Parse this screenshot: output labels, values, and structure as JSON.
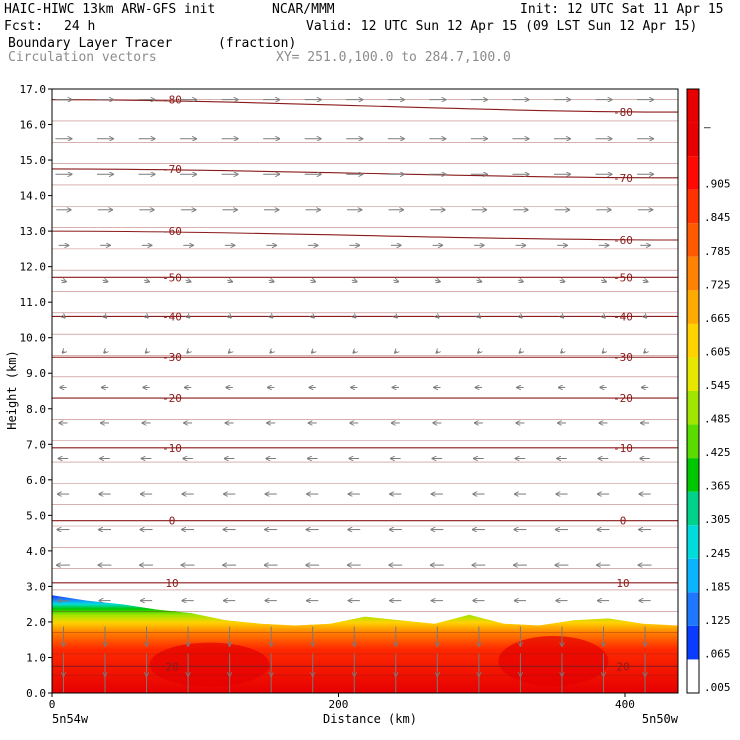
{
  "header": {
    "model": "HAIC-HIWC 13km ARW-GFS init",
    "center": "NCAR/MMM",
    "init": "Init: 12 UTC Sat 11 Apr 15",
    "fcst_label": "Fcst:",
    "fcst_value": "24 h",
    "valid": "Valid: 12 UTC Sun 12 Apr 15 (09 LST Sun 12 Apr 15)",
    "field1_name": "Boundary Layer Tracer",
    "field1_units": "(fraction)",
    "field2_name": "Circulation vectors",
    "xy_range": "XY= 251.0,100.0 to 284.7,100.0"
  },
  "chart_data": {
    "type": "heatmap",
    "xlabel": "Distance (km)",
    "ylabel": "Height (km)",
    "xlim": [
      0,
      437
    ],
    "ylim": [
      0,
      17
    ],
    "x_ticks": [
      "0",
      "200",
      "400"
    ],
    "x_end_labels": [
      "5n54w",
      "5n50w"
    ],
    "y_ticks": [
      "0.0",
      "1.0",
      "2.0",
      "3.0",
      "4.0",
      "5.0",
      "6.0",
      "7.0",
      "8.0",
      "9.0",
      "10.0",
      "11.0",
      "12.0",
      "13.0",
      "14.0",
      "15.0",
      "16.0",
      "17.0"
    ],
    "colorbar_labels": [
      ".005",
      ".065",
      ".125",
      ".185",
      ".245",
      ".305",
      ".365",
      ".425",
      ".485",
      ".545",
      ".605",
      ".665",
      ".725",
      ".785",
      ".845",
      ".905",
      "–"
    ],
    "colorbar_colors": [
      "#ffffff",
      "#0a3cff",
      "#1e78ff",
      "#0ab4ff",
      "#00dcdc",
      "#00d28c",
      "#00c800",
      "#5adc00",
      "#a0e600",
      "#e6e600",
      "#ffd200",
      "#ffaa00",
      "#ff8200",
      "#ff5a00",
      "#ff3200",
      "#ff0a00",
      "#e60000",
      "#e60000"
    ],
    "temperature_contours": [
      {
        "label": "-80",
        "h": 16.7,
        "tilt": -0.35
      },
      {
        "label": "-70",
        "h": 14.75,
        "tilt": -0.25
      },
      {
        "label": "-60",
        "h": 13.0,
        "tilt": -0.25
      },
      {
        "label": "-50",
        "h": 11.7,
        "tilt": 0.0
      },
      {
        "label": "-40",
        "h": 10.6,
        "tilt": 0.0
      },
      {
        "label": "-30",
        "h": 9.45,
        "tilt": 0.0
      },
      {
        "label": "-20",
        "h": 8.3,
        "tilt": 0.0
      },
      {
        "label": "-10",
        "h": 6.9,
        "tilt": 0.0
      },
      {
        "label": "0",
        "h": 4.85,
        "tilt": 0.0
      },
      {
        "label": "10",
        "h": 3.1,
        "tilt": 0.0
      },
      {
        "label": "20",
        "h": 0.75,
        "tilt": 0.0
      }
    ],
    "tracer_top_km": [
      2.75,
      2.6,
      2.5,
      2.35,
      2.25,
      2.05,
      1.95,
      1.9,
      1.95,
      2.15,
      2.05,
      1.95,
      2.2,
      1.95,
      1.9,
      2.05,
      2.1,
      1.95,
      1.9
    ],
    "wind_rows": [
      {
        "h": 16.7,
        "u": 1,
        "v": 0
      },
      {
        "h": 15.6,
        "u": 1,
        "v": 0
      },
      {
        "h": 14.6,
        "u": 1,
        "v": 0
      },
      {
        "h": 13.6,
        "u": 0.9,
        "v": 0
      },
      {
        "h": 12.6,
        "u": 0.6,
        "v": 0
      },
      {
        "h": 11.6,
        "u": 0.3,
        "v": -0.1
      },
      {
        "h": 10.6,
        "u": 0.15,
        "v": -0.15
      },
      {
        "h": 9.6,
        "u": -0.1,
        "v": -0.1
      },
      {
        "h": 8.6,
        "u": -0.4,
        "v": 0
      },
      {
        "h": 7.6,
        "u": -0.5,
        "v": 0
      },
      {
        "h": 6.6,
        "u": -0.6,
        "v": 0
      },
      {
        "h": 5.6,
        "u": -0.7,
        "v": 0
      },
      {
        "h": 4.6,
        "u": -0.75,
        "v": 0
      },
      {
        "h": 3.6,
        "u": -0.8,
        "v": 0
      },
      {
        "h": 2.6,
        "u": -0.7,
        "v": 0
      },
      {
        "h": 1.6,
        "u": 0,
        "v": -1.2
      },
      {
        "h": 0.8,
        "u": 0,
        "v": -1.4
      },
      {
        "h": 0.2,
        "u": 0,
        "v": -1.4
      }
    ]
  }
}
